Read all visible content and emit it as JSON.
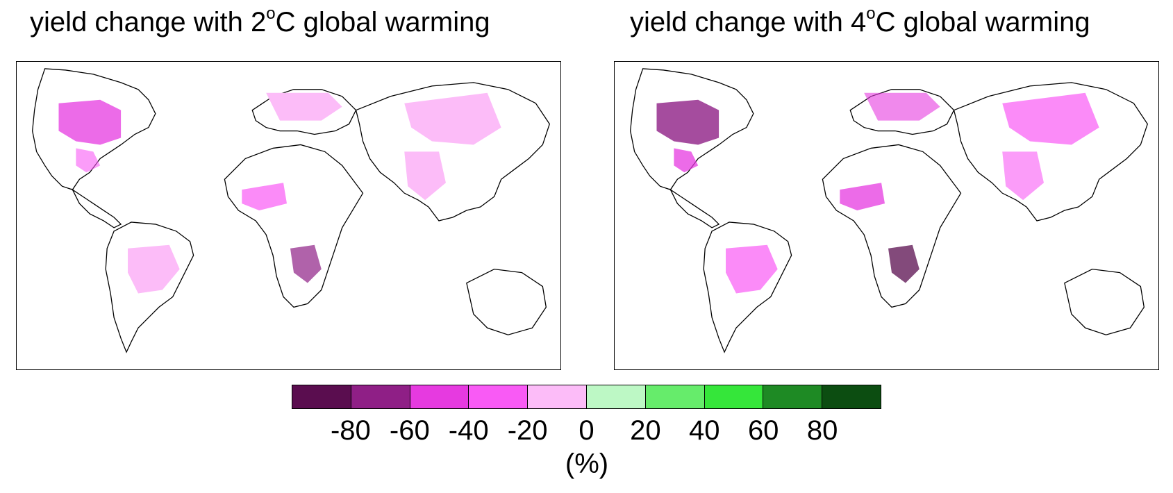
{
  "panels": [
    {
      "title": "yield change with 2",
      "title_sup": "o",
      "title_end": "C global warming"
    },
    {
      "title": "yield change with 4",
      "title_sup": "o",
      "title_end": "C global warming"
    }
  ],
  "colorbar": {
    "colors": [
      "#5a0d4f",
      "#8f1f86",
      "#e63ae0",
      "#f95af5",
      "#fcbcf8",
      "#bdf8c5",
      "#66ec6b",
      "#35e63a",
      "#1e8a24",
      "#0c4d11"
    ],
    "ticks": [
      "-80",
      "-60",
      "-40",
      "-20",
      "0",
      "20",
      "40",
      "60",
      "80"
    ],
    "unit": "(%)"
  }
}
